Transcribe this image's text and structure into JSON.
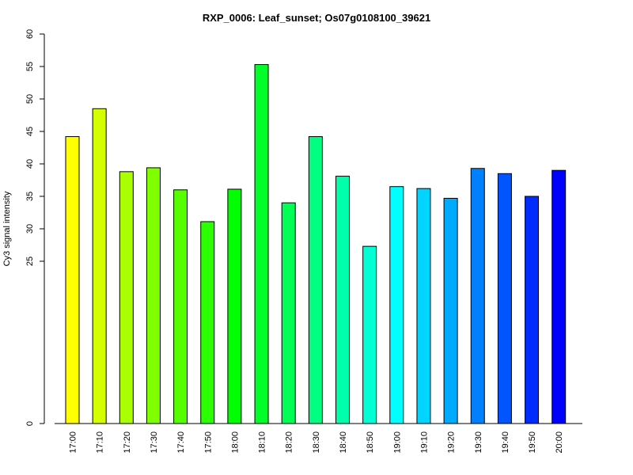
{
  "chart_data": {
    "type": "bar",
    "title": "RXP_0006: Leaf_sunset; Os07g0108100_39621",
    "xlabel": "",
    "ylabel": "Cy3 signal intensity",
    "ylim": [
      0,
      60
    ],
    "yticks": [
      0,
      25,
      30,
      35,
      40,
      45,
      50,
      55,
      60
    ],
    "grid": false,
    "categories": [
      "17:00",
      "17:10",
      "17:20",
      "17:30",
      "17:40",
      "17:50",
      "18:00",
      "18:10",
      "18:20",
      "18:30",
      "18:40",
      "18:50",
      "19:00",
      "19:10",
      "19:20",
      "19:30",
      "19:40",
      "19:50",
      "20:00"
    ],
    "values": [
      44.2,
      48.5,
      38.8,
      39.4,
      36.0,
      31.1,
      36.1,
      55.3,
      34.0,
      44.2,
      38.1,
      27.3,
      36.5,
      36.2,
      34.7,
      39.3,
      38.5,
      35.0,
      39.0
    ],
    "colors": [
      "#FFFF00",
      "#D4FF00",
      "#AAFF00",
      "#80FF00",
      "#55FF00",
      "#2BFF00",
      "#00FF00",
      "#00FF2A",
      "#00FF55",
      "#00FF80",
      "#00FFAA",
      "#00FFD4",
      "#00FFFF",
      "#00D4FF",
      "#00AAFF",
      "#0080FF",
      "#0055FF",
      "#002BFF",
      "#0000FF"
    ]
  }
}
